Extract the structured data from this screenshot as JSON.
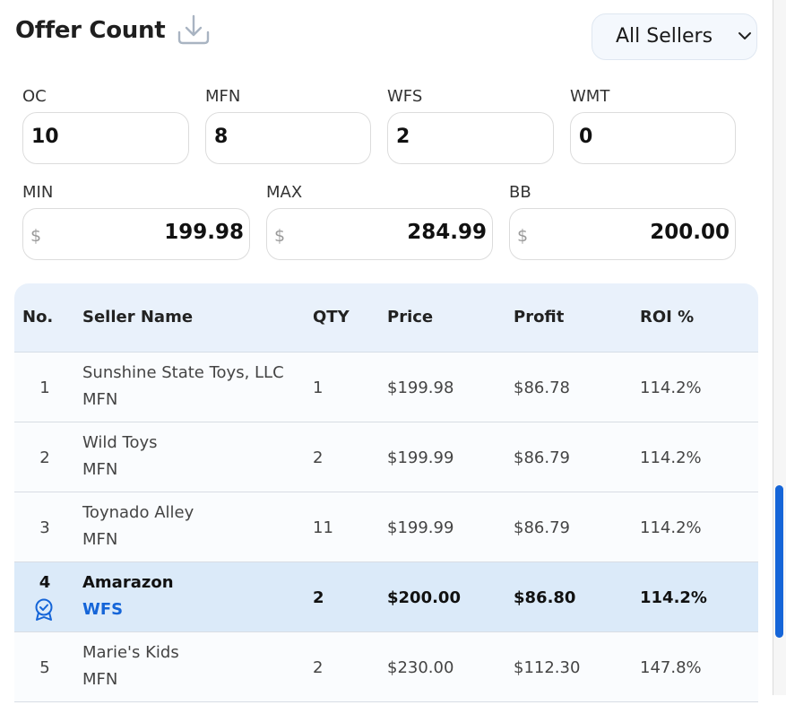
{
  "header": {
    "title": "Offer Count",
    "download_icon": "download-icon"
  },
  "seller_filter": {
    "selected": "All Sellers",
    "icon": "chevron-down-icon"
  },
  "counts": [
    {
      "label": "OC",
      "value": "10"
    },
    {
      "label": "MFN",
      "value": "8"
    },
    {
      "label": "WFS",
      "value": "2"
    },
    {
      "label": "WMT",
      "value": "0"
    }
  ],
  "prices": [
    {
      "label": "MIN",
      "currency": "$",
      "value": "199.98"
    },
    {
      "label": "MAX",
      "currency": "$",
      "value": "284.99"
    },
    {
      "label": "BB",
      "currency": "$",
      "value": "200.00"
    }
  ],
  "table": {
    "columns": [
      "No.",
      "Seller Name",
      "QTY",
      "Price",
      "Profit",
      "ROI %"
    ],
    "rows": [
      {
        "no": "1",
        "seller": "Sunshine State Toys, LLC",
        "type": "MFN",
        "qty": "1",
        "price": "$199.98",
        "profit": "$86.78",
        "roi": "114.2%"
      },
      {
        "no": "2",
        "seller": "Wild Toys",
        "type": "MFN",
        "qty": "2",
        "price": "$199.99",
        "profit": "$86.79",
        "roi": "114.2%"
      },
      {
        "no": "3",
        "seller": "Toynado Alley",
        "type": "MFN",
        "qty": "11",
        "price": "$199.99",
        "profit": "$86.79",
        "roi": "114.2%"
      },
      {
        "no": "4",
        "seller": "Amarazon",
        "type": "WFS",
        "qty": "2",
        "price": "$200.00",
        "profit": "$86.80",
        "roi": "114.2%",
        "buy_box_icon": "award-badge-icon"
      },
      {
        "no": "5",
        "seller": "Marie's Kids",
        "type": "MFN",
        "qty": "2",
        "price": "$230.00",
        "profit": "$112.30",
        "roi": "147.8%"
      }
    ]
  },
  "colors": {
    "accent": "#1565d8",
    "header_bg": "#e9f1fb",
    "highlight_row": "#dbeaf9"
  }
}
